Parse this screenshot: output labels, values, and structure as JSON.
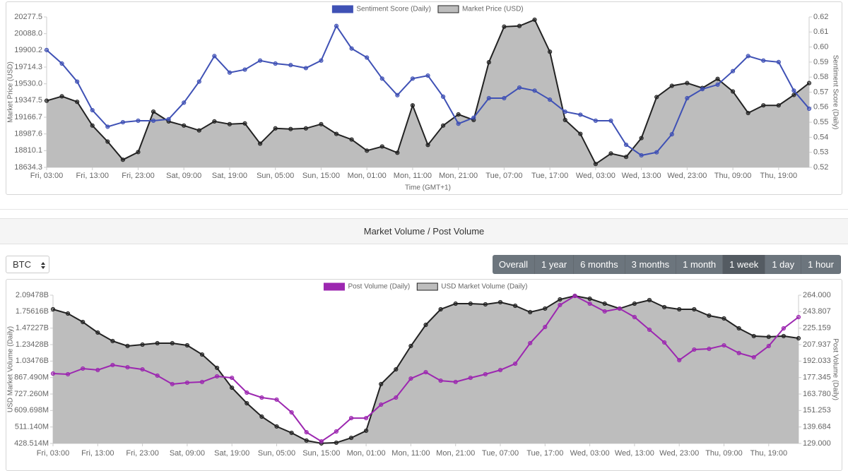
{
  "chart_data": [
    {
      "type": "line",
      "legend": "top",
      "ylabel": "Market Price (USD)",
      "y2label": "Sentiment Score (Daily)",
      "xlabel": "Time (GMT+1)",
      "categories": [
        "Fri, 03:00",
        null,
        null,
        "Fri, 13:00",
        null,
        null,
        "Fri, 23:00",
        null,
        null,
        "Sat, 09:00",
        null,
        null,
        "Sat, 19:00",
        null,
        null,
        "Sun, 05:00",
        null,
        null,
        "Sun, 15:00",
        null,
        null,
        "Mon, 01:00",
        null,
        null,
        "Mon, 11:00",
        null,
        null,
        "Mon, 21:00",
        null,
        null,
        "Tue, 07:00",
        null,
        null,
        "Tue, 17:00",
        null,
        null,
        "Wed, 03:00",
        null,
        null,
        "Wed, 13:00",
        null,
        null,
        "Wed, 23:00",
        null,
        null,
        "Thu, 09:00",
        null,
        null,
        "Thu, 19:00",
        null,
        null
      ],
      "series": [
        {
          "name": "Sentiment Score (Daily)",
          "color": "#3f51b5",
          "axis": "y2",
          "values": [
            0.598,
            0.589,
            0.577,
            0.558,
            0.547,
            0.55,
            0.551,
            0.551,
            0.552,
            0.563,
            0.577,
            0.594,
            0.583,
            0.585,
            0.591,
            0.589,
            0.588,
            0.586,
            0.591,
            0.614,
            0.599,
            0.593,
            0.579,
            0.568,
            0.579,
            0.581,
            0.567,
            0.549,
            0.553,
            0.566,
            0.566,
            0.573,
            0.571,
            0.565,
            0.557,
            0.555,
            0.551,
            0.551,
            0.535,
            0.528,
            0.53,
            0.542,
            0.566,
            0.572,
            0.575,
            0.584,
            0.594,
            0.591,
            0.59,
            0.571,
            0.559
          ]
        },
        {
          "name": "Market Price (USD)",
          "color": "#222222",
          "fill": "#bdbdbd",
          "values": [
            19345,
            19393,
            19333,
            19077,
            18906,
            18714,
            18795,
            19227,
            19122,
            19077,
            19025,
            19122,
            19092,
            19100,
            18884,
            19047,
            19040,
            19047,
            19092,
            18988,
            18928,
            18810,
            18854,
            18788,
            19295,
            18870,
            19077,
            19197,
            19137,
            19768,
            20167,
            20175,
            20246,
            19885,
            19137,
            18988,
            18670,
            18780,
            18744,
            18943,
            19385,
            19508,
            19538,
            19484,
            19584,
            19446,
            19212,
            19295,
            19295,
            19408,
            19538
          ]
        }
      ],
      "ylog": true,
      "ylim": [
        18634.3,
        20277.5
      ],
      "yticks": [
        20277.5,
        {
          "value": 20088,
          "label": "20088.0"
        },
        19900.2,
        19714.3,
        {
          "value": 19530,
          "label": "19530.0"
        },
        19347.5,
        19166.7,
        18987.6,
        18810.1,
        18634.3
      ],
      "y2lim": [
        0.52,
        0.62
      ],
      "y2ticks": [
        0.62,
        0.61,
        {
          "value": 0.6,
          "label": "0.60"
        },
        0.59,
        0.58,
        0.57,
        0.56,
        0.55,
        0.54,
        0.53,
        0.52
      ]
    },
    {
      "type": "line",
      "legend": "top",
      "ylabel": "USD Market Volume (Daily)",
      "y2label": "Post Volume (Daily)",
      "categories": [
        "Fri, 03:00",
        null,
        null,
        "Fri, 13:00",
        null,
        null,
        "Fri, 23:00",
        null,
        null,
        "Sat, 09:00",
        null,
        null,
        "Sat, 19:00",
        null,
        null,
        "Sun, 05:00",
        null,
        null,
        "Sun, 15:00",
        null,
        null,
        "Mon, 01:00",
        null,
        null,
        "Mon, 11:00",
        null,
        null,
        "Mon, 21:00",
        null,
        null,
        "Tue, 07:00",
        null,
        null,
        "Tue, 17:00",
        null,
        null,
        "Wed, 03:00",
        null,
        null,
        "Wed, 13:00",
        null,
        null,
        "Wed, 23:00",
        null,
        null,
        "Thu, 09:00",
        null,
        null,
        "Thu, 19:00",
        null,
        null
      ],
      "series": [
        {
          "name": "Post Volume (Daily)",
          "color": "#9c27b0",
          "axis": "y2",
          "values": [
            180.8,
            180.2,
            185.2,
            183.9,
            188.4,
            186.4,
            184.5,
            179.0,
            171.8,
            173.0,
            173.6,
            178.4,
            177.1,
            164.9,
            161.0,
            159.4,
            149.9,
            136.2,
            130.3,
            136.7,
            145.8,
            145.8,
            155.6,
            161.0,
            176.5,
            182.0,
            174.7,
            173.6,
            177.1,
            180.2,
            183.9,
            189.6,
            209.4,
            226.4,
            251.7,
            263.1,
            253.4,
            244.1,
            247.4,
            237.5,
            223.4,
            210.1,
            192.9,
            203.0,
            203.7,
            207.2,
            199.6,
            195.6,
            206.5,
            224.9,
            237.5
          ]
        },
        {
          "name": "USD Market Volume (Daily)",
          "color": "#222222",
          "fill": "#bdbdbd",
          "values": [
            1801000000,
            1721000000,
            1572000000,
            1404000000,
            1282000000,
            1216000000,
            1234000000,
            1253000000,
            1253000000,
            1225000000,
            1110000000,
            962000000,
            778000000,
            659000000,
            571000000,
            514000000,
            480000000,
            442000000,
            429000000,
            432000000,
            455000000,
            491000000,
            809000000,
            947000000,
            1216000000,
            1525000000,
            1801000000,
            1913000000,
            1913000000,
            1899000000,
            1943000000,
            1870000000,
            1747000000,
            1815000000,
            2002000000,
            2079000000,
            2017000000,
            1913000000,
            1815000000,
            1913000000,
            1987000000,
            1843000000,
            1801000000,
            1801000000,
            1683000000,
            1633000000,
            1469000000,
            1352000000,
            1341000000,
            1352000000,
            1321000000
          ]
        }
      ],
      "ylog": true,
      "ylim": [
        428514000,
        2094780000
      ],
      "yticks": [
        {
          "value": 2094780000,
          "label": "2.09478B"
        },
        {
          "value": 1756160000,
          "label": "1.75616B"
        },
        {
          "value": 1472270000,
          "label": "1.47227B"
        },
        {
          "value": 1234280000,
          "label": "1.23428B"
        },
        {
          "value": 1034760000,
          "label": "1.03476B"
        },
        {
          "value": 867490000,
          "label": "867.490M"
        },
        {
          "value": 727260000,
          "label": "727.260M"
        },
        {
          "value": 609698000,
          "label": "609.698M"
        },
        {
          "value": 511140000,
          "label": "511.140M"
        },
        {
          "value": 428514000,
          "label": "428.514M"
        }
      ],
      "y2log": true,
      "y2lim": [
        129,
        264
      ],
      "y2ticks": [
        {
          "value": 264,
          "label": "264.000"
        },
        {
          "value": 243.807,
          "label": "243.807"
        },
        {
          "value": 225.159,
          "label": "225.159"
        },
        {
          "value": 207.937,
          "label": "207.937"
        },
        {
          "value": 192.033,
          "label": "192.033"
        },
        {
          "value": 177.345,
          "label": "177.345"
        },
        {
          "value": 163.78,
          "label": "163.780"
        },
        {
          "value": 151.253,
          "label": "151.253"
        },
        {
          "value": 139.684,
          "label": "139.684"
        },
        {
          "value": 129,
          "label": "129.000"
        }
      ]
    }
  ],
  "section_title": "Market Volume / Post Volume",
  "select": "BTC",
  "ranges": [
    "Overall",
    "1 year",
    "6 months",
    "3 months",
    "1 month",
    "1 week",
    "1 day",
    "1 hour"
  ],
  "active_range": "1 week"
}
